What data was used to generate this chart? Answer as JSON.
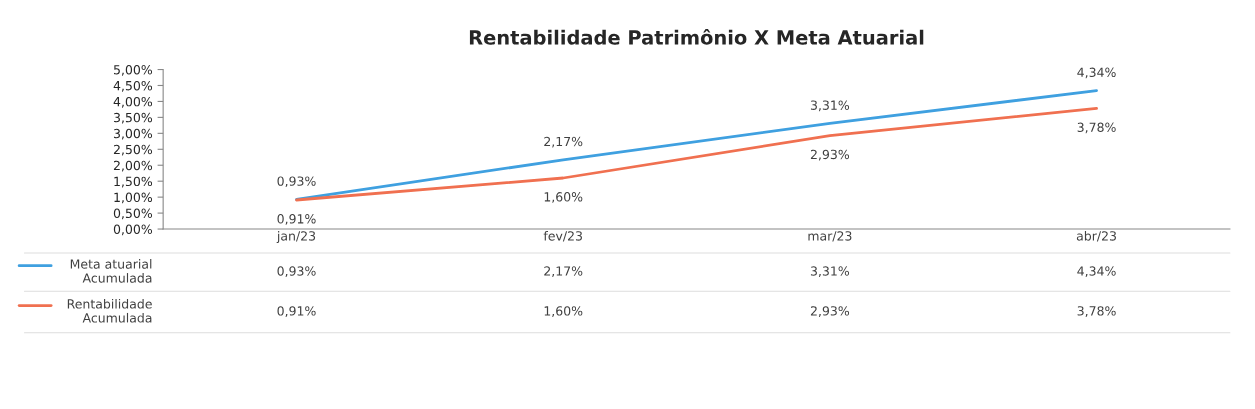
{
  "chart_data": {
    "type": "line",
    "title": "Rentabilidade Patrimônio X Meta Atuarial",
    "categories": [
      "jan/23",
      "fev/23",
      "mar/23",
      "abr/23"
    ],
    "series": [
      {
        "name": "Meta atuarial Acumulada",
        "color": "#3fa0e0",
        "values": [
          0.93,
          2.17,
          3.31,
          4.34
        ],
        "value_labels": [
          "0,93%",
          "2,17%",
          "3,31%",
          "4,34%"
        ]
      },
      {
        "name": "Rentabilidade Acumulada",
        "color": "#f07050",
        "values": [
          0.91,
          1.6,
          2.93,
          3.78
        ],
        "value_labels": [
          "0,91%",
          "1,60%",
          "2,93%",
          "3,78%"
        ]
      }
    ],
    "ylim": [
      0,
      5
    ],
    "yticks": [
      {
        "value": 0,
        "label": "0,00%"
      },
      {
        "value": 0.5,
        "label": "0,50%"
      },
      {
        "value": 1,
        "label": "1,00%"
      },
      {
        "value": 1.5,
        "label": "1,50%"
      },
      {
        "value": 2,
        "label": "2,00%"
      },
      {
        "value": 2.5,
        "label": "2,50%"
      },
      {
        "value": 3,
        "label": "3,00%"
      },
      {
        "value": 3.5,
        "label": "3,50%"
      },
      {
        "value": 4,
        "label": "4,00%"
      },
      {
        "value": 4.5,
        "label": "4,50%"
      },
      {
        "value": 5,
        "label": "5,00%"
      }
    ],
    "grid": false,
    "legend": "bottom",
    "marker": "none",
    "line_style": "solid"
  }
}
